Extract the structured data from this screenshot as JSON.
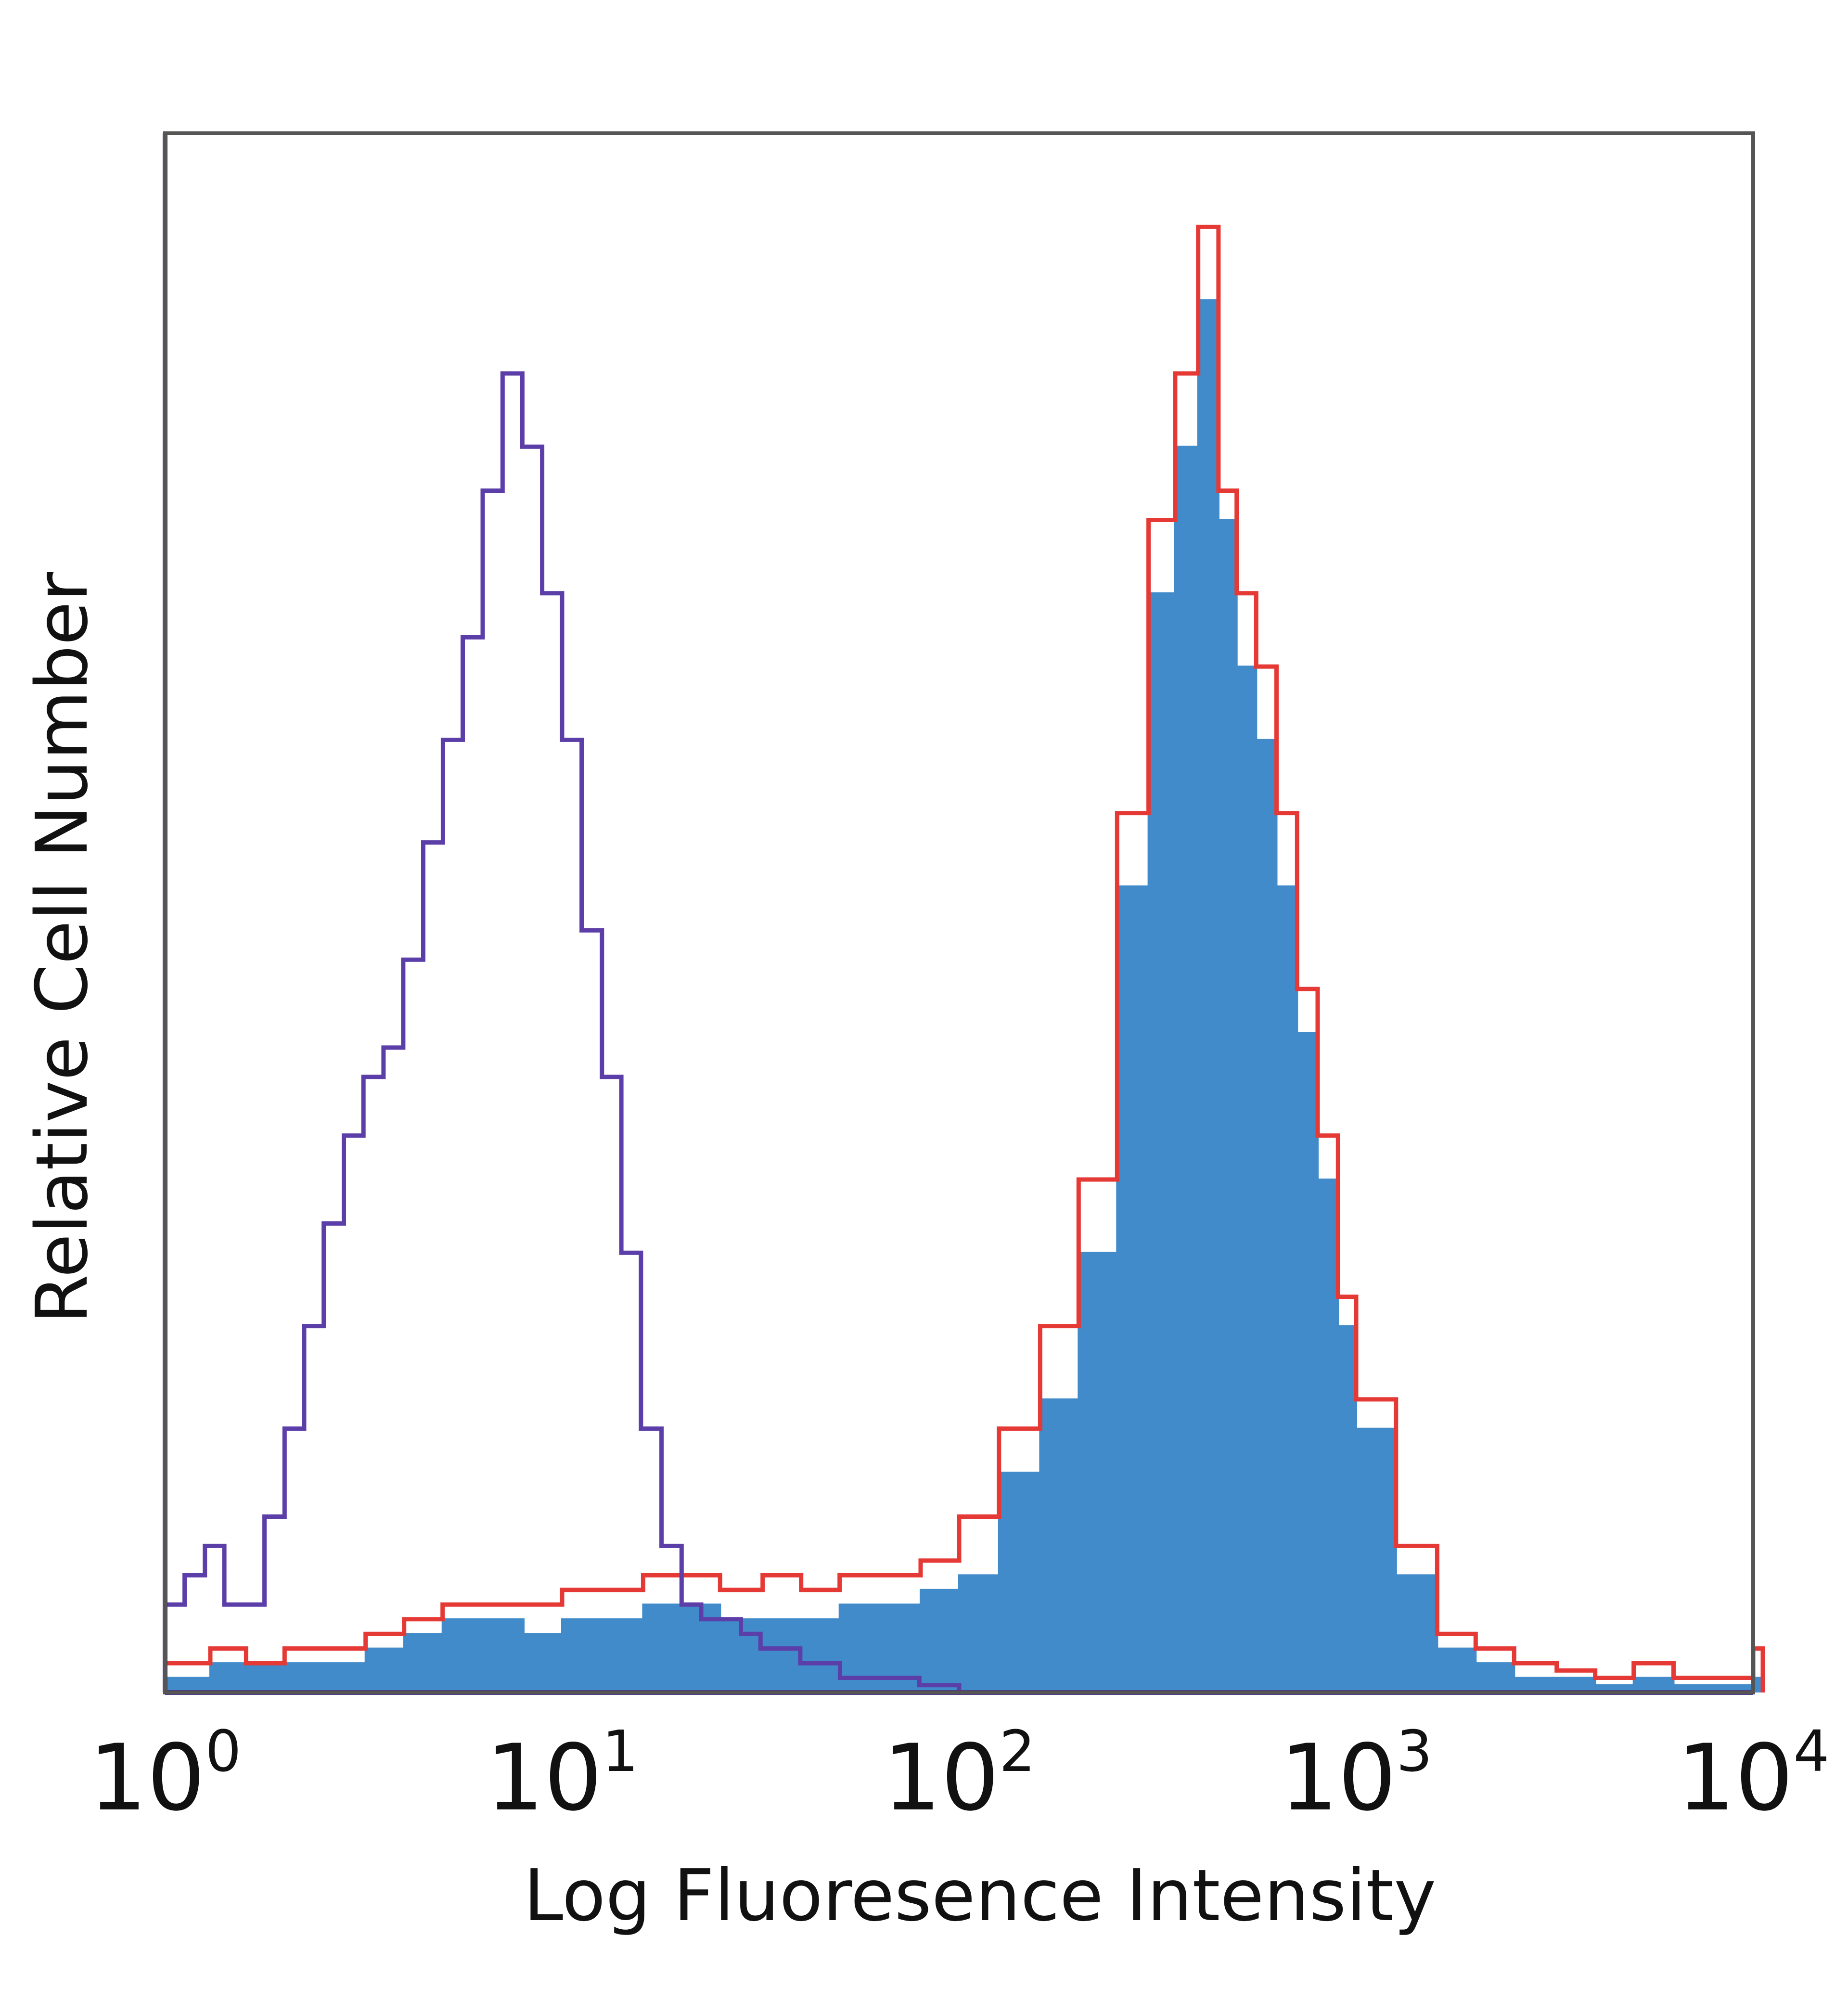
{
  "chart_data": {
    "type": "histogram",
    "xlabel": "Log Fluoresence Intensity",
    "ylabel": "Relative Cell Number",
    "x_scale": "log",
    "xlim": [
      1,
      10000
    ],
    "ylim": [
      0,
      1
    ],
    "grid": false,
    "legend": "none",
    "x_ticks": [
      {
        "value": 1,
        "base": "10",
        "exp": "0"
      },
      {
        "value": 10,
        "base": "10",
        "exp": "1"
      },
      {
        "value": 100,
        "base": "10",
        "exp": "2"
      },
      {
        "value": 1000,
        "base": "10",
        "exp": "3"
      },
      {
        "value": 10000,
        "base": "10",
        "exp": "4"
      }
    ],
    "series": [
      {
        "style": "filled",
        "color": "#428bca",
        "x": [
          1,
          1.3,
          1.6,
          2,
          2.5,
          3.2,
          4,
          5,
          6.3,
          8,
          10,
          12.6,
          16,
          20,
          25,
          32,
          40,
          50,
          63,
          80,
          100,
          126,
          160,
          200,
          250,
          300,
          350,
          400,
          450,
          500,
          560,
          630,
          710,
          800,
          900,
          1000,
          1260,
          1600,
          2000,
          2500,
          3200,
          4000,
          5000,
          6300,
          8000,
          10000
        ],
        "y": [
          0.01,
          0.02,
          0.02,
          0.02,
          0.02,
          0.03,
          0.04,
          0.05,
          0.05,
          0.04,
          0.05,
          0.05,
          0.06,
          0.06,
          0.05,
          0.05,
          0.05,
          0.06,
          0.06,
          0.07,
          0.08,
          0.15,
          0.2,
          0.3,
          0.55,
          0.75,
          0.85,
          0.95,
          0.8,
          0.7,
          0.65,
          0.55,
          0.45,
          0.35,
          0.25,
          0.18,
          0.08,
          0.03,
          0.02,
          0.01,
          0.01,
          0.005,
          0.01,
          0.005,
          0.005,
          0.01
        ]
      },
      {
        "style": "line",
        "color": "#e53935",
        "x": [
          1,
          1.3,
          1.6,
          2,
          2.5,
          3.2,
          4,
          5,
          6.3,
          8,
          10,
          12.6,
          16,
          20,
          25,
          32,
          40,
          50,
          63,
          80,
          100,
          126,
          160,
          200,
          250,
          300,
          350,
          400,
          450,
          500,
          560,
          630,
          710,
          800,
          900,
          1000,
          1260,
          1600,
          2000,
          2500,
          3200,
          4000,
          5000,
          6300,
          8000,
          10000
        ],
        "y": [
          0.02,
          0.03,
          0.02,
          0.03,
          0.03,
          0.04,
          0.05,
          0.06,
          0.06,
          0.06,
          0.07,
          0.07,
          0.08,
          0.08,
          0.07,
          0.08,
          0.07,
          0.08,
          0.08,
          0.09,
          0.12,
          0.18,
          0.25,
          0.35,
          0.6,
          0.8,
          0.9,
          1.0,
          0.82,
          0.75,
          0.7,
          0.6,
          0.48,
          0.38,
          0.27,
          0.2,
          0.1,
          0.04,
          0.03,
          0.02,
          0.015,
          0.01,
          0.02,
          0.01,
          0.01,
          0.03
        ]
      },
      {
        "style": "line",
        "color": "#5c3ea8",
        "x": [
          1,
          1.12,
          1.26,
          1.41,
          1.58,
          1.78,
          2,
          2.24,
          2.51,
          2.82,
          3.16,
          3.55,
          3.98,
          4.47,
          5.01,
          5.62,
          6.31,
          7.08,
          7.94,
          8.91,
          10,
          11.2,
          12.6,
          14.1,
          15.8,
          17.8,
          20,
          22.4,
          25.1,
          28.2,
          31.6,
          39.8,
          50.1,
          63.1,
          79.4,
          100
        ],
        "y": [
          0.06,
          0.08,
          0.1,
          0.06,
          0.06,
          0.12,
          0.18,
          0.25,
          0.32,
          0.38,
          0.42,
          0.44,
          0.5,
          0.58,
          0.65,
          0.72,
          0.82,
          0.9,
          0.85,
          0.75,
          0.65,
          0.52,
          0.42,
          0.3,
          0.18,
          0.1,
          0.06,
          0.05,
          0.05,
          0.04,
          0.03,
          0.02,
          0.01,
          0.01,
          0.005,
          0
        ]
      }
    ]
  }
}
